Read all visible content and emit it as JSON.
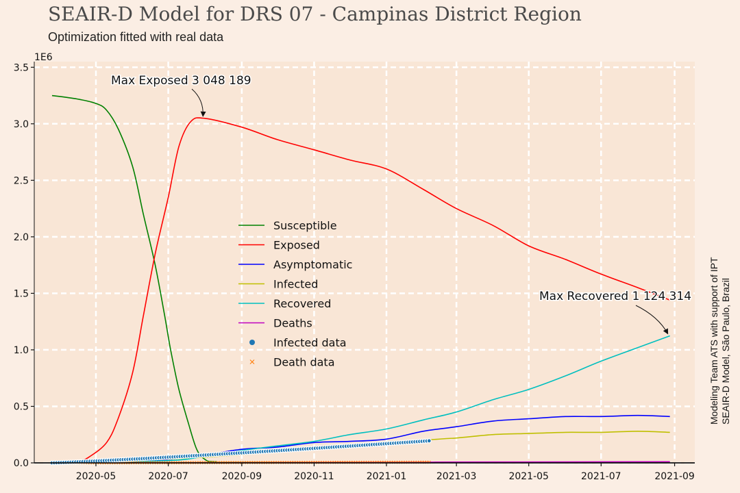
{
  "title": "SEAIR-D Model for DRS 07 - Campinas District Region",
  "subtitle": "Optimization fitted with real data",
  "side_note": [
    "Modeling Team ATS with support of IPT",
    "SEAIR-D Model, São Paulo, Brazil"
  ],
  "chart_data": {
    "type": "line",
    "y_scale_label": "1E6",
    "ylim": [
      0,
      3.55
    ],
    "yticks": [
      "0.0",
      "0.5",
      "1.0",
      "1.5",
      "2.0",
      "2.5",
      "3.0",
      "3.5"
    ],
    "xlim": [
      "2020-03-10",
      "2021-09-18"
    ],
    "xticks": [
      "2020-05",
      "2020-07",
      "2020-09",
      "2020-11",
      "2021-01",
      "2021-03",
      "2021-05",
      "2021-07",
      "2021-09"
    ],
    "grid": true,
    "legend_position": "center",
    "colors": {
      "Susceptible": "#008000",
      "Exposed": "#ff0000",
      "Asymptomatic": "#0000ff",
      "Infected": "#bfbf00",
      "Recovered": "#00bfbf",
      "Deaths": "#bf00bf",
      "Infected data": "#1f77b4",
      "Death data": "#ff7f0e"
    },
    "legend": [
      "Susceptible",
      "Exposed",
      "Asymptomatic",
      "Infected",
      "Recovered",
      "Deaths",
      "Infected data",
      "Death data"
    ],
    "series": [
      {
        "name": "Susceptible",
        "points": [
          [
            "2020-03-25",
            3.25
          ],
          [
            "2020-04-15",
            3.22
          ],
          [
            "2020-05-01",
            3.18
          ],
          [
            "2020-05-10",
            3.12
          ],
          [
            "2020-05-20",
            2.95
          ],
          [
            "2020-06-01",
            2.62
          ],
          [
            "2020-06-10",
            2.2
          ],
          [
            "2020-06-20",
            1.75
          ],
          [
            "2020-06-28",
            1.3
          ],
          [
            "2020-07-03",
            1.0
          ],
          [
            "2020-07-10",
            0.65
          ],
          [
            "2020-07-18",
            0.35
          ],
          [
            "2020-07-25",
            0.12
          ],
          [
            "2020-08-01",
            0.03
          ],
          [
            "2020-08-10",
            0.01
          ],
          [
            "2020-09-15",
            0.005
          ],
          [
            "2021-08-28",
            0.003
          ]
        ]
      },
      {
        "name": "Exposed",
        "points": [
          [
            "2020-04-15",
            0.0
          ],
          [
            "2020-04-25",
            0.05
          ],
          [
            "2020-05-10",
            0.18
          ],
          [
            "2020-05-20",
            0.4
          ],
          [
            "2020-06-01",
            0.8
          ],
          [
            "2020-06-10",
            1.3
          ],
          [
            "2020-06-20",
            1.85
          ],
          [
            "2020-07-01",
            2.35
          ],
          [
            "2020-07-10",
            2.8
          ],
          [
            "2020-07-20",
            3.02
          ],
          [
            "2020-08-01",
            3.048
          ],
          [
            "2020-09-01",
            2.97
          ],
          [
            "2020-10-01",
            2.86
          ],
          [
            "2020-11-01",
            2.77
          ],
          [
            "2020-12-01",
            2.68
          ],
          [
            "2021-01-01",
            2.6
          ],
          [
            "2021-02-01",
            2.42
          ],
          [
            "2021-03-01",
            2.25
          ],
          [
            "2021-04-01",
            2.1
          ],
          [
            "2021-05-01",
            1.92
          ],
          [
            "2021-06-01",
            1.8
          ],
          [
            "2021-07-01",
            1.67
          ],
          [
            "2021-08-01",
            1.55
          ],
          [
            "2021-08-28",
            1.44
          ]
        ]
      },
      {
        "name": "Asymptomatic",
        "points": [
          [
            "2020-03-25",
            0.0
          ],
          [
            "2020-06-01",
            0.01
          ],
          [
            "2020-07-01",
            0.03
          ],
          [
            "2020-08-01",
            0.07
          ],
          [
            "2020-09-01",
            0.12
          ],
          [
            "2020-10-01",
            0.14
          ],
          [
            "2020-11-01",
            0.18
          ],
          [
            "2020-12-01",
            0.19
          ],
          [
            "2021-01-01",
            0.21
          ],
          [
            "2021-02-01",
            0.28
          ],
          [
            "2021-03-01",
            0.32
          ],
          [
            "2021-04-01",
            0.37
          ],
          [
            "2021-05-01",
            0.39
          ],
          [
            "2021-06-01",
            0.41
          ],
          [
            "2021-07-01",
            0.41
          ],
          [
            "2021-08-01",
            0.42
          ],
          [
            "2021-08-28",
            0.41
          ]
        ]
      },
      {
        "name": "Infected",
        "points": [
          [
            "2020-03-25",
            0.0
          ],
          [
            "2020-08-01",
            0.05
          ],
          [
            "2021-02-01",
            0.2
          ],
          [
            "2021-03-01",
            0.22
          ],
          [
            "2021-04-01",
            0.25
          ],
          [
            "2021-05-01",
            0.26
          ],
          [
            "2021-06-01",
            0.27
          ],
          [
            "2021-07-01",
            0.27
          ],
          [
            "2021-08-01",
            0.28
          ],
          [
            "2021-08-28",
            0.27
          ]
        ]
      },
      {
        "name": "Recovered",
        "points": [
          [
            "2020-03-25",
            0.0
          ],
          [
            "2020-07-01",
            0.02
          ],
          [
            "2020-08-01",
            0.06
          ],
          [
            "2020-09-01",
            0.11
          ],
          [
            "2020-10-01",
            0.15
          ],
          [
            "2020-11-01",
            0.19
          ],
          [
            "2020-12-01",
            0.25
          ],
          [
            "2021-01-01",
            0.3
          ],
          [
            "2021-02-01",
            0.38
          ],
          [
            "2021-03-01",
            0.45
          ],
          [
            "2021-04-01",
            0.56
          ],
          [
            "2021-05-01",
            0.65
          ],
          [
            "2021-06-01",
            0.77
          ],
          [
            "2021-07-01",
            0.9
          ],
          [
            "2021-08-01",
            1.02
          ],
          [
            "2021-08-28",
            1.124
          ]
        ]
      },
      {
        "name": "Deaths",
        "points": [
          [
            "2020-03-25",
            0.0
          ],
          [
            "2020-09-01",
            0.003
          ],
          [
            "2021-01-01",
            0.006
          ],
          [
            "2021-04-01",
            0.008
          ],
          [
            "2021-08-28",
            0.01
          ]
        ]
      }
    ],
    "infected_data": {
      "name": "Infected data",
      "start": "2020-03-25",
      "end": "2021-02-06",
      "end_value": 0.195
    },
    "death_data": {
      "name": "Death data",
      "start": "2020-03-25",
      "end": "2021-02-06",
      "end_value": 0.006
    },
    "annotations": [
      {
        "label": "Max Exposed 3 048 189",
        "series": "Exposed",
        "x": "2020-08-01",
        "y": 3.048
      },
      {
        "label": "Max Recovered 1 124 314",
        "series": "Recovered",
        "x": "2021-08-28",
        "y": 1.124
      }
    ]
  }
}
